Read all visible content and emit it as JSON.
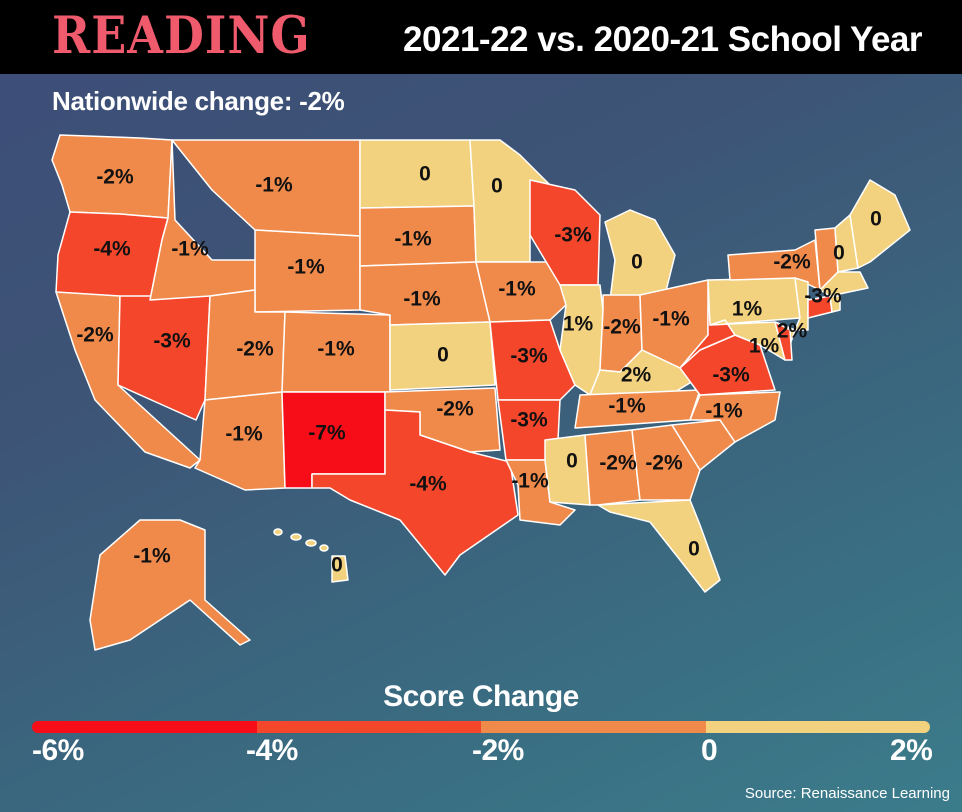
{
  "header": {
    "subject": "READING",
    "comparison": "2021-22 vs. 2020-21 School Year"
  },
  "nationwide": "Nationwide change: -2%",
  "colors": {
    "dark_red": "#f70d17",
    "red": "#f4462a",
    "orange": "#f08a4b",
    "yellow": "#f2d27e",
    "header_bg": "#000000",
    "title_red": "#ef5b6c"
  },
  "states": [
    {
      "name": "WA",
      "change": "-2%",
      "level": "orange"
    },
    {
      "name": "OR",
      "change": "-4%",
      "level": "red"
    },
    {
      "name": "CA",
      "change": "-2%",
      "level": "orange"
    },
    {
      "name": "NV",
      "change": "-3%",
      "level": "red"
    },
    {
      "name": "ID",
      "change": "-1%",
      "level": "orange"
    },
    {
      "name": "MT",
      "change": "-1%",
      "level": "orange"
    },
    {
      "name": "WY",
      "change": "-1%",
      "level": "orange"
    },
    {
      "name": "UT",
      "change": "-2%",
      "level": "orange"
    },
    {
      "name": "AZ",
      "change": "-1%",
      "level": "orange"
    },
    {
      "name": "CO",
      "change": "-1%",
      "level": "orange"
    },
    {
      "name": "NM",
      "change": "-7%",
      "level": "dark_red"
    },
    {
      "name": "ND",
      "change": "0",
      "level": "yellow"
    },
    {
      "name": "SD",
      "change": "-1%",
      "level": "orange"
    },
    {
      "name": "NE",
      "change": "-1%",
      "level": "orange"
    },
    {
      "name": "KS",
      "change": "0",
      "level": "yellow"
    },
    {
      "name": "OK",
      "change": "-2%",
      "level": "orange"
    },
    {
      "name": "TX",
      "change": "-4%",
      "level": "red"
    },
    {
      "name": "MN",
      "change": "0",
      "level": "yellow"
    },
    {
      "name": "IA",
      "change": "-1%",
      "level": "orange"
    },
    {
      "name": "MO",
      "change": "-3%",
      "level": "red"
    },
    {
      "name": "AR",
      "change": "-3%",
      "level": "red"
    },
    {
      "name": "LA",
      "change": "-1%",
      "level": "orange"
    },
    {
      "name": "WI",
      "change": "-3%",
      "level": "red"
    },
    {
      "name": "IL",
      "change": "1%",
      "level": "yellow"
    },
    {
      "name": "MI",
      "change": "0",
      "level": "yellow"
    },
    {
      "name": "IN",
      "change": "-2%",
      "level": "orange"
    },
    {
      "name": "OH",
      "change": "-1%",
      "level": "orange"
    },
    {
      "name": "KY",
      "change": "2%",
      "level": "yellow"
    },
    {
      "name": "TN",
      "change": "-1%",
      "level": "orange"
    },
    {
      "name": "MS",
      "change": "0",
      "level": "yellow"
    },
    {
      "name": "AL",
      "change": "-2%",
      "level": "orange"
    },
    {
      "name": "GA",
      "change": "-2%",
      "level": "orange"
    },
    {
      "name": "FL",
      "change": "0",
      "level": "yellow"
    },
    {
      "name": "SC",
      "change": "",
      "level": "orange"
    },
    {
      "name": "NC",
      "change": "-1%",
      "level": "orange"
    },
    {
      "name": "VA",
      "change": "-3%",
      "level": "red"
    },
    {
      "name": "WV",
      "change": "",
      "level": "red"
    },
    {
      "name": "PA",
      "change": "1%",
      "level": "yellow"
    },
    {
      "name": "NY",
      "change": "-2%",
      "level": "orange"
    },
    {
      "name": "NJ",
      "change": "2%",
      "level": "yellow"
    },
    {
      "name": "MD",
      "change": "1%",
      "level": "yellow"
    },
    {
      "name": "DE",
      "change": "",
      "level": "red"
    },
    {
      "name": "VT",
      "change": "0",
      "level": "orange"
    },
    {
      "name": "NH",
      "change": "",
      "level": "yellow"
    },
    {
      "name": "ME",
      "change": "0",
      "level": "yellow"
    },
    {
      "name": "MA",
      "change": "",
      "level": "yellow"
    },
    {
      "name": "CT",
      "change": "-3%",
      "level": "red"
    },
    {
      "name": "RI",
      "change": "",
      "level": "yellow"
    },
    {
      "name": "AK",
      "change": "-1%",
      "level": "orange"
    },
    {
      "name": "HI",
      "change": "0",
      "level": "yellow"
    }
  ],
  "legend": {
    "title": "Score Change",
    "ticks": [
      "-6%",
      "-4%",
      "-2%",
      "0",
      "2%"
    ],
    "segment_colors": [
      "#f70d17",
      "#f4462a",
      "#f08a4b",
      "#f2d27e"
    ]
  },
  "source": "Source: Renaissance Learning"
}
